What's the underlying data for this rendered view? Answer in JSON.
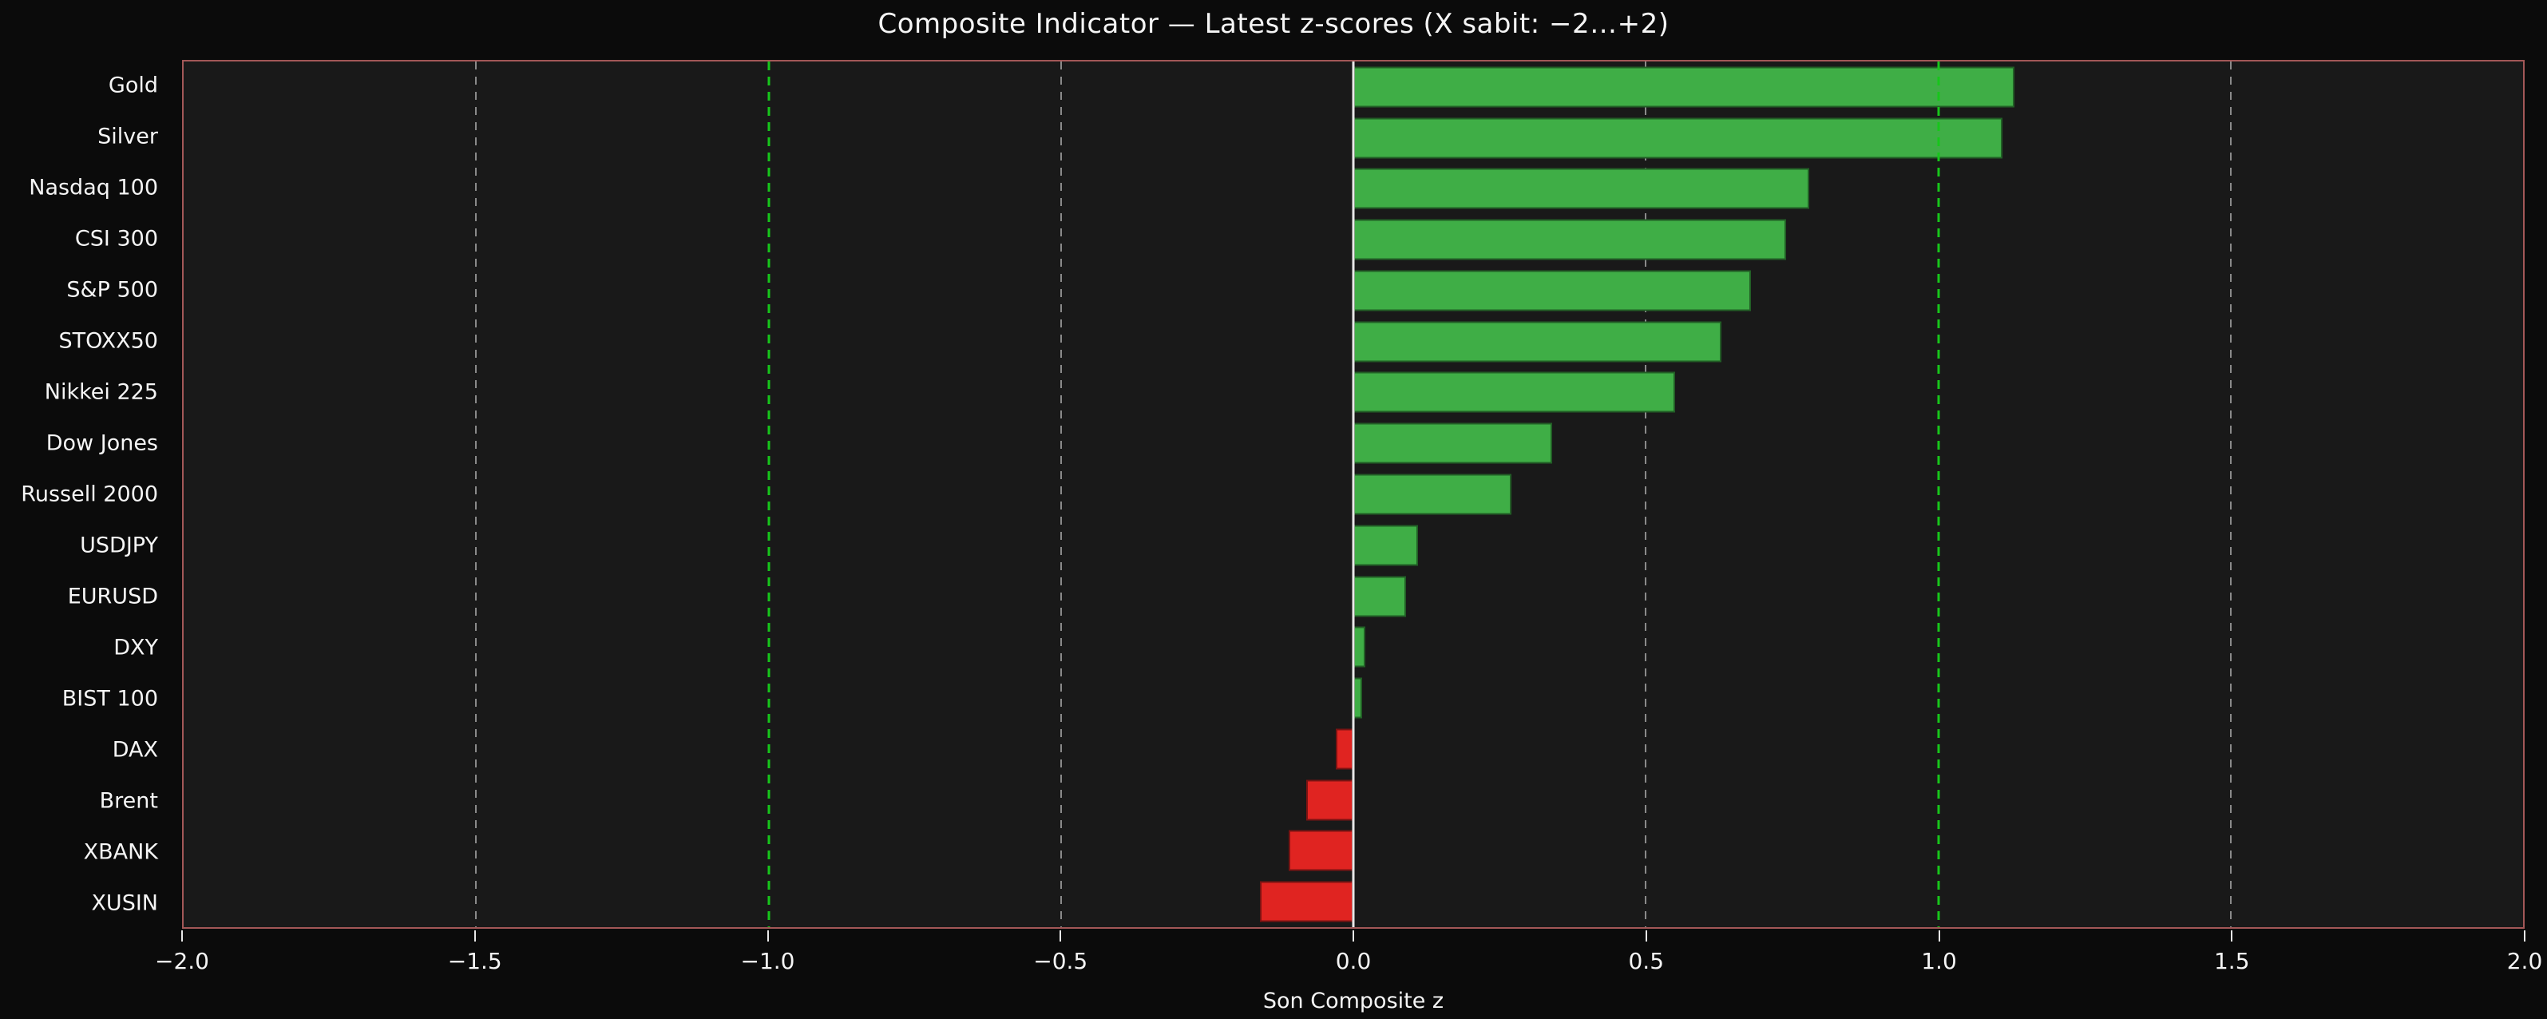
{
  "title": "Composite Indicator — Latest z-scores (X sabit: −2…+2)",
  "chart_data": {
    "type": "bar",
    "orientation": "horizontal",
    "title": "Composite Indicator — Latest z-scores (X sabit: −2…+2)",
    "xlabel": "Son Composite z",
    "ylabel": "",
    "xlim": [
      -2.0,
      2.0
    ],
    "categories": [
      "Gold",
      "Silver",
      "Nasdaq 100",
      "CSI 300",
      "S&P 500",
      "STOXX50",
      "Nikkei 225",
      "Dow Jones",
      "Russell 2000",
      "USDJPY",
      "EURUSD",
      "DXY",
      "BIST 100",
      "DAX",
      "Brent",
      "XBANK",
      "XUSIN"
    ],
    "values": [
      1.13,
      1.11,
      0.78,
      0.74,
      0.68,
      0.63,
      0.55,
      0.34,
      0.27,
      0.11,
      0.09,
      0.02,
      0.015,
      -0.03,
      -0.08,
      -0.11,
      -0.16
    ],
    "xticks": [
      -2.0,
      -1.5,
      -1.0,
      -0.5,
      0.0,
      0.5,
      1.0,
      1.5,
      2.0
    ],
    "xtick_labels": [
      "−2.0",
      "−1.5",
      "−1.0",
      "−0.5",
      "0.0",
      "0.5",
      "1.0",
      "1.5",
      "2.0"
    ],
    "gridlines": [
      {
        "x": -1.5,
        "kind": "minor"
      },
      {
        "x": -1.0,
        "kind": "accent"
      },
      {
        "x": -0.5,
        "kind": "minor"
      },
      {
        "x": 0.0,
        "kind": "zero"
      },
      {
        "x": 0.5,
        "kind": "minor"
      },
      {
        "x": 1.0,
        "kind": "accent"
      },
      {
        "x": 1.5,
        "kind": "minor"
      }
    ],
    "legend": null,
    "grid": true,
    "colors": {
      "positive_bar": "#3fae46",
      "negative_bar": "#e02421",
      "accent_line": "#17c61b",
      "zero_line": "#e8e8e8",
      "grid_line": "#8a8a8a",
      "spine": "#a25757",
      "background": "#0b0b0b",
      "plot_background": "#191919",
      "text": "#f5f5f5"
    }
  }
}
